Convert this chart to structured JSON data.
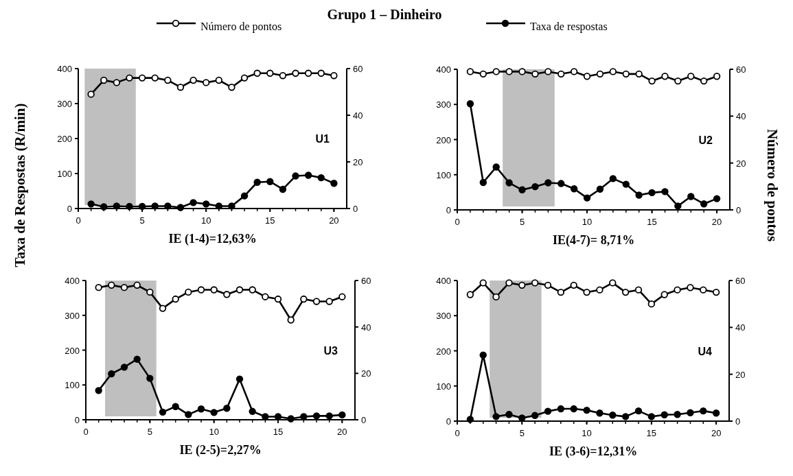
{
  "chart_data": [
    {
      "type": "line",
      "title": "Grupo 1 – Dinheiro",
      "ylabel": "Taxa de Respostas (R/min)",
      "legend": "top",
      "marker": "circle",
      "x": [
        1,
        2,
        3,
        4,
        5,
        6,
        7,
        8,
        9,
        10,
        11,
        12,
        13,
        14,
        15,
        16,
        17,
        18,
        19,
        20
      ],
      "xlim": [
        0,
        21
      ],
      "xticks": [
        0,
        5,
        10,
        15,
        20
      ],
      "ylim": [
        0,
        400
      ],
      "yticks": [
        0,
        100,
        200,
        300,
        400
      ],
      "y2lim": [
        0,
        60
      ],
      "y2ticks": [
        0,
        20,
        40,
        60
      ],
      "annotations": [
        "U1",
        "IE (1-4)=12,63%"
      ],
      "bands": [
        {
          "axis": "x",
          "from": 0.5,
          "to": 4.5,
          "color": "#bfbfbf"
        }
      ],
      "series": [
        {
          "name": "Número de pontos",
          "color": "#000000",
          "axis": "y2",
          "values": [
            49,
            55,
            54,
            56,
            56,
            56,
            55,
            52,
            55,
            54,
            55,
            52,
            56,
            58,
            58,
            57,
            58,
            58,
            58,
            57
          ]
        },
        {
          "name": "Taxa de respostas",
          "color": "#000000",
          "values": [
            13,
            5,
            7,
            6,
            6,
            7,
            7,
            3,
            17,
            13,
            7,
            7,
            36,
            75,
            77,
            55,
            93,
            95,
            88,
            72
          ]
        }
      ]
    },
    {
      "type": "line",
      "y2label": "Número de pontos",
      "marker": "circle",
      "x": [
        1,
        2,
        3,
        4,
        5,
        6,
        7,
        8,
        9,
        10,
        11,
        12,
        13,
        14,
        15,
        16,
        17,
        18,
        19,
        20
      ],
      "xlim": [
        0,
        21
      ],
      "xticks": [
        0,
        5,
        10,
        15,
        20
      ],
      "ylim": [
        0,
        400
      ],
      "yticks": [
        0,
        100,
        200,
        300,
        400
      ],
      "y2lim": [
        0,
        60
      ],
      "y2ticks": [
        0,
        20,
        40,
        60
      ],
      "annotations": [
        "U2",
        "IE(4-7)= 8,71%"
      ],
      "bands": [
        {
          "axis": "x",
          "from": 3.5,
          "to": 7.5,
          "color": "#bfbfbf"
        }
      ],
      "series": [
        {
          "color": "#000000",
          "axis": "y2",
          "values": [
            59,
            58,
            59,
            59,
            59,
            58,
            59,
            58,
            59,
            57,
            58,
            59,
            58,
            58,
            55,
            57,
            55,
            57,
            55,
            57
          ]
        },
        {
          "color": "#000000",
          "values": [
            302,
            78,
            122,
            77,
            57,
            66,
            77,
            75,
            60,
            34,
            59,
            89,
            73,
            42,
            49,
            52,
            11,
            38,
            17,
            32
          ]
        }
      ]
    },
    {
      "type": "line",
      "marker": "circle",
      "x": [
        1,
        2,
        3,
        4,
        5,
        6,
        7,
        8,
        9,
        10,
        11,
        12,
        13,
        14,
        15,
        16,
        17,
        18,
        19,
        20
      ],
      "xlim": [
        0,
        21
      ],
      "xticks": [
        0,
        5,
        10,
        15,
        20
      ],
      "ylim": [
        0,
        400
      ],
      "yticks": [
        0,
        100,
        200,
        300,
        400
      ],
      "y2lim": [
        0,
        60
      ],
      "y2ticks": [
        0,
        20,
        40,
        60
      ],
      "annotations": [
        "U3",
        "IE (2-5)=2,27%"
      ],
      "bands": [
        {
          "axis": "x",
          "from": 1.5,
          "to": 5.5,
          "color": "#bfbfbf"
        }
      ],
      "series": [
        {
          "color": "#000000",
          "axis": "y2",
          "values": [
            57,
            58,
            57,
            58,
            55,
            48,
            52,
            55,
            56,
            56,
            54,
            56,
            56,
            53,
            52,
            43,
            52,
            51,
            51,
            53
          ]
        },
        {
          "color": "#000000",
          "values": [
            84,
            132,
            151,
            174,
            119,
            22,
            38,
            15,
            31,
            21,
            33,
            117,
            24,
            9,
            9,
            3,
            9,
            11,
            11,
            14
          ]
        }
      ]
    },
    {
      "type": "line",
      "marker": "circle",
      "x": [
        1,
        2,
        3,
        4,
        5,
        6,
        7,
        8,
        9,
        10,
        11,
        12,
        13,
        14,
        15,
        16,
        17,
        18,
        19,
        20
      ],
      "xlim": [
        0,
        21
      ],
      "xticks": [
        0,
        5,
        10,
        15,
        20
      ],
      "ylim": [
        0,
        400
      ],
      "yticks": [
        0,
        100,
        200,
        300,
        400
      ],
      "y2lim": [
        0,
        60
      ],
      "y2ticks": [
        0,
        20,
        40,
        60
      ],
      "annotations": [
        "U4",
        "IE (3-6)=12,31%"
      ],
      "bands": [
        {
          "axis": "x",
          "from": 2.5,
          "to": 6.5,
          "color": "#bfbfbf"
        }
      ],
      "series": [
        {
          "color": "#000000",
          "axis": "y2",
          "values": [
            54,
            59,
            53,
            59,
            58,
            59,
            58,
            55,
            58,
            55,
            56,
            59,
            55,
            56,
            50,
            54,
            56,
            57,
            56,
            55
          ]
        },
        {
          "color": "#000000",
          "values": [
            5,
            188,
            13,
            19,
            9,
            16,
            28,
            35,
            35,
            31,
            23,
            17,
            13,
            29,
            13,
            18,
            19,
            24,
            29,
            23
          ]
        }
      ]
    }
  ]
}
